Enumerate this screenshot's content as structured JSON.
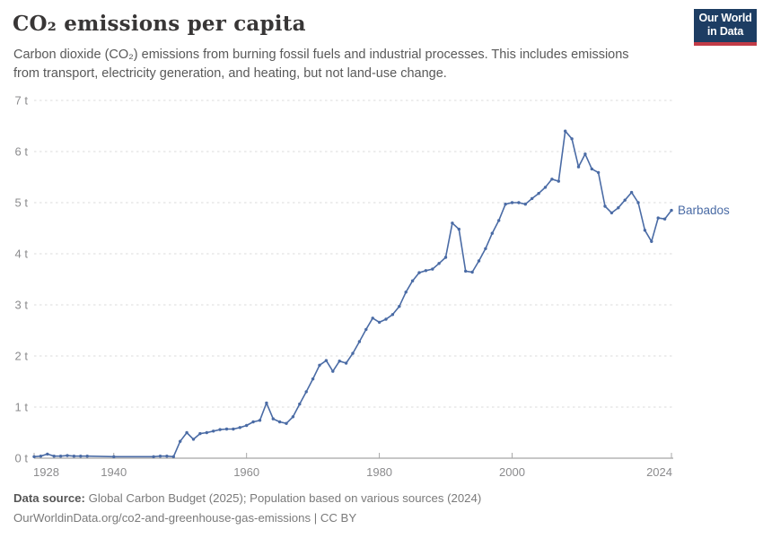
{
  "header": {
    "title": "CO₂ emissions per capita",
    "subtitle_lines": [
      "Carbon dioxide (CO₂) emissions from burning fossil fuels and industrial processes. This includes emissions",
      "from transport, electricity generation, and heating, but not land-use change."
    ],
    "logo": {
      "line1": "Our World",
      "line2": "in Data",
      "bg_color": "#1D3D63",
      "accent_color": "#C23B47"
    }
  },
  "chart_data": {
    "type": "line",
    "title": "CO₂ emissions per capita",
    "unit": "tonnes per person",
    "xlim": [
      1928,
      2024
    ],
    "ylim": [
      0,
      7
    ],
    "grid": "horizontal-dashed",
    "legend_position": "end-of-line-label",
    "yticks": [
      {
        "value": 0,
        "label": "0 t"
      },
      {
        "value": 1,
        "label": "1 t"
      },
      {
        "value": 2,
        "label": "2 t"
      },
      {
        "value": 3,
        "label": "3 t"
      },
      {
        "value": 4,
        "label": "4 t"
      },
      {
        "value": 5,
        "label": "5 t"
      },
      {
        "value": 6,
        "label": "6 t"
      },
      {
        "value": 7,
        "label": "7 t"
      }
    ],
    "xticks": [
      {
        "value": 1928,
        "label": "1928"
      },
      {
        "value": 1940,
        "label": "1940"
      },
      {
        "value": 1960,
        "label": "1960"
      },
      {
        "value": 1980,
        "label": "1980"
      },
      {
        "value": 2000,
        "label": "2000"
      },
      {
        "value": 2024,
        "label": "2024"
      }
    ],
    "series": [
      {
        "name": "Barbados",
        "color": "#4A6BA5",
        "points": [
          [
            1928,
            0.03
          ],
          [
            1929,
            0.04
          ],
          [
            1930,
            0.08
          ],
          [
            1931,
            0.04
          ],
          [
            1932,
            0.04
          ],
          [
            1933,
            0.05
          ],
          [
            1934,
            0.04
          ],
          [
            1935,
            0.04
          ],
          [
            1936,
            0.04
          ],
          [
            1940,
            0.03
          ],
          [
            1946,
            0.03
          ],
          [
            1947,
            0.04
          ],
          [
            1948,
            0.04
          ],
          [
            1949,
            0.03
          ],
          [
            1950,
            0.33
          ],
          [
            1951,
            0.5
          ],
          [
            1952,
            0.37
          ],
          [
            1953,
            0.48
          ],
          [
            1954,
            0.5
          ],
          [
            1955,
            0.53
          ],
          [
            1956,
            0.56
          ],
          [
            1957,
            0.57
          ],
          [
            1958,
            0.57
          ],
          [
            1959,
            0.6
          ],
          [
            1960,
            0.64
          ],
          [
            1961,
            0.71
          ],
          [
            1962,
            0.74
          ],
          [
            1963,
            1.08
          ],
          [
            1964,
            0.77
          ],
          [
            1965,
            0.71
          ],
          [
            1966,
            0.68
          ],
          [
            1967,
            0.81
          ],
          [
            1968,
            1.06
          ],
          [
            1969,
            1.3
          ],
          [
            1970,
            1.55
          ],
          [
            1971,
            1.82
          ],
          [
            1972,
            1.91
          ],
          [
            1973,
            1.7
          ],
          [
            1974,
            1.9
          ],
          [
            1975,
            1.86
          ],
          [
            1976,
            2.05
          ],
          [
            1977,
            2.28
          ],
          [
            1978,
            2.52
          ],
          [
            1979,
            2.74
          ],
          [
            1980,
            2.66
          ],
          [
            1981,
            2.72
          ],
          [
            1982,
            2.81
          ],
          [
            1983,
            2.97
          ],
          [
            1984,
            3.25
          ],
          [
            1985,
            3.47
          ],
          [
            1986,
            3.63
          ],
          [
            1987,
            3.67
          ],
          [
            1988,
            3.7
          ],
          [
            1989,
            3.81
          ],
          [
            1990,
            3.93
          ],
          [
            1991,
            4.6
          ],
          [
            1992,
            4.48
          ],
          [
            1993,
            3.66
          ],
          [
            1994,
            3.64
          ],
          [
            1995,
            3.86
          ],
          [
            1996,
            4.1
          ],
          [
            1997,
            4.4
          ],
          [
            1998,
            4.65
          ],
          [
            1999,
            4.97
          ],
          [
            2000,
            5.0
          ],
          [
            2001,
            5.0
          ],
          [
            2002,
            4.97
          ],
          [
            2003,
            5.08
          ],
          [
            2004,
            5.18
          ],
          [
            2005,
            5.3
          ],
          [
            2006,
            5.46
          ],
          [
            2007,
            5.42
          ],
          [
            2008,
            6.4
          ],
          [
            2009,
            6.25
          ],
          [
            2010,
            5.7
          ],
          [
            2011,
            5.95
          ],
          [
            2012,
            5.66
          ],
          [
            2013,
            5.59
          ],
          [
            2014,
            4.93
          ],
          [
            2015,
            4.8
          ],
          [
            2016,
            4.9
          ],
          [
            2017,
            5.05
          ],
          [
            2018,
            5.2
          ],
          [
            2019,
            5.0
          ],
          [
            2020,
            4.46
          ],
          [
            2021,
            4.24
          ],
          [
            2022,
            4.7
          ],
          [
            2023,
            4.68
          ],
          [
            2024,
            4.85
          ]
        ]
      }
    ]
  },
  "footer": {
    "datasource_label": "Data source:",
    "datasource_text": "Global Carbon Budget (2025); Population based on various sources (2024)",
    "url_line": "OurWorldinData.org/co2-and-greenhouse-gas-emissions | CC BY"
  },
  "colors": {
    "line": "#4A6BA5",
    "gridline": "#DBDBDB",
    "axis_line": "#8F8F8F",
    "tick_mark": "#A8A8A8",
    "tick_label": "#8B8B8D",
    "title_text": "#383636",
    "subtitle_text": "#595959",
    "footer_text": "#7A7A7A"
  }
}
